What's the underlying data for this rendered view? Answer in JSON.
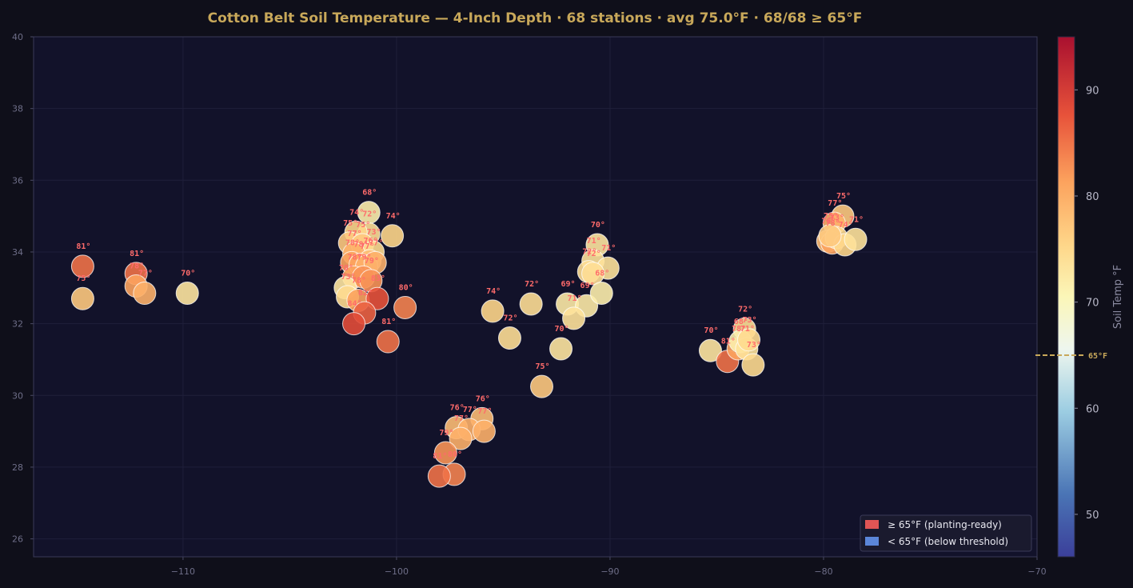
{
  "colors": {
    "background": "#0f0f1a",
    "plot_background": "#12122a",
    "title": "#c8a85a",
    "tick_text": "#6e6e88",
    "cb_tick_text": "#b8b8c8",
    "label_text": "#ff6b6b",
    "threshold": "#c8a85a",
    "legend_bg": "#1a1a2e",
    "legend_text": "#e8e8f0",
    "above_swatch": "#e05555",
    "below_swatch": "#5b86d8"
  },
  "chart_data": {
    "type": "scatter",
    "title": "Cotton Belt Soil Temperature — 4-Inch Depth  ·  68 stations  ·  avg 75.0°F  ·  68/68 ≥ 65°F",
    "xlabel": "",
    "ylabel": "",
    "xlim": [
      -117,
      -70
    ],
    "ylim": [
      25.5,
      40
    ],
    "xticks": [
      -110,
      -100,
      -90,
      -80,
      -70
    ],
    "xtick_labels": [
      "−110",
      "−100",
      "−90",
      "−80",
      "−70"
    ],
    "yticks": [
      26,
      28,
      30,
      32,
      34,
      36,
      38,
      40
    ],
    "grid": true,
    "colorbar": {
      "label": "Soil Temp °F",
      "range": [
        46,
        95
      ],
      "ticks": [
        50,
        60,
        70,
        80,
        90
      ],
      "threshold": 65,
      "threshold_label": "65°F",
      "colormap": "RdYlBu_r"
    },
    "legend": {
      "position": "bottom-right",
      "entries": [
        {
          "label": "≥ 65°F  (planting-ready)",
          "color": "#e05555"
        },
        {
          "label": "< 65°F  (below threshold)",
          "color": "#5b86d8"
        }
      ]
    },
    "points": [
      {
        "lon": -114.7,
        "lat": 33.6,
        "temp": 81
      },
      {
        "lon": -114.7,
        "lat": 32.7,
        "temp": 75
      },
      {
        "lon": -112.2,
        "lat": 33.4,
        "temp": 81
      },
      {
        "lon": -112.2,
        "lat": 33.05,
        "temp": 78
      },
      {
        "lon": -111.8,
        "lat": 32.85,
        "temp": 77
      },
      {
        "lon": -109.8,
        "lat": 32.85,
        "temp": 70
      },
      {
        "lon": -101.3,
        "lat": 35.1,
        "temp": 68
      },
      {
        "lon": -101.3,
        "lat": 34.5,
        "temp": 72
      },
      {
        "lon": -101.9,
        "lat": 34.55,
        "temp": 74
      },
      {
        "lon": -100.2,
        "lat": 34.45,
        "temp": 74
      },
      {
        "lon": -102.2,
        "lat": 34.25,
        "temp": 75
      },
      {
        "lon": -101.6,
        "lat": 34.2,
        "temp": 75
      },
      {
        "lon": -101.1,
        "lat": 34.0,
        "temp": 73
      },
      {
        "lon": -102.0,
        "lat": 33.95,
        "temp": 77
      },
      {
        "lon": -101.25,
        "lat": 33.75,
        "temp": 76
      },
      {
        "lon": -102.1,
        "lat": 33.7,
        "temp": 78
      },
      {
        "lon": -101.7,
        "lat": 33.65,
        "temp": 78
      },
      {
        "lon": -101.4,
        "lat": 33.6,
        "temp": 77
      },
      {
        "lon": -101.0,
        "lat": 33.7,
        "temp": 77
      },
      {
        "lon": -102.0,
        "lat": 33.3,
        "temp": 78
      },
      {
        "lon": -101.55,
        "lat": 33.3,
        "temp": 79
      },
      {
        "lon": -101.2,
        "lat": 33.2,
        "temp": 79
      },
      {
        "lon": -102.4,
        "lat": 33.0,
        "temp": 70
      },
      {
        "lon": -102.3,
        "lat": 32.75,
        "temp": 73
      },
      {
        "lon": -101.8,
        "lat": 32.65,
        "temp": 78
      },
      {
        "lon": -100.9,
        "lat": 32.7,
        "temp": 83
      },
      {
        "lon": -101.5,
        "lat": 32.3,
        "temp": 82
      },
      {
        "lon": -102.0,
        "lat": 32.0,
        "temp": 84
      },
      {
        "lon": -99.6,
        "lat": 32.45,
        "temp": 80
      },
      {
        "lon": -100.4,
        "lat": 31.5,
        "temp": 81
      },
      {
        "lon": -95.5,
        "lat": 32.35,
        "temp": 74
      },
      {
        "lon": -94.7,
        "lat": 31.6,
        "temp": 72
      },
      {
        "lon": -93.7,
        "lat": 32.55,
        "temp": 72
      },
      {
        "lon": -93.2,
        "lat": 30.25,
        "temp": 75
      },
      {
        "lon": -92.3,
        "lat": 31.3,
        "temp": 70
      },
      {
        "lon": -92.0,
        "lat": 32.55,
        "temp": 69
      },
      {
        "lon": -91.1,
        "lat": 32.5,
        "temp": 69
      },
      {
        "lon": -91.7,
        "lat": 32.15,
        "temp": 71
      },
      {
        "lon": -90.6,
        "lat": 34.2,
        "temp": 70
      },
      {
        "lon": -90.8,
        "lat": 33.75,
        "temp": 71
      },
      {
        "lon": -90.1,
        "lat": 33.55,
        "temp": 71
      },
      {
        "lon": -91.0,
        "lat": 33.45,
        "temp": 72
      },
      {
        "lon": -90.8,
        "lat": 33.4,
        "temp": 72
      },
      {
        "lon": -90.4,
        "lat": 32.85,
        "temp": 68
      },
      {
        "lon": -97.2,
        "lat": 29.1,
        "temp": 76
      },
      {
        "lon": -96.0,
        "lat": 29.35,
        "temp": 76
      },
      {
        "lon": -96.6,
        "lat": 29.05,
        "temp": 77
      },
      {
        "lon": -97.0,
        "lat": 28.8,
        "temp": 77
      },
      {
        "lon": -95.9,
        "lat": 29.0,
        "temp": 77
      },
      {
        "lon": -97.7,
        "lat": 28.4,
        "temp": 79
      },
      {
        "lon": -97.3,
        "lat": 27.8,
        "temp": 80
      },
      {
        "lon": -98.0,
        "lat": 27.75,
        "temp": 81
      },
      {
        "lon": -85.3,
        "lat": 31.25,
        "temp": 70
      },
      {
        "lon": -84.5,
        "lat": 30.95,
        "temp": 81
      },
      {
        "lon": -84.0,
        "lat": 31.3,
        "temp": 78
      },
      {
        "lon": -83.7,
        "lat": 31.85,
        "temp": 72
      },
      {
        "lon": -83.9,
        "lat": 31.5,
        "temp": 68
      },
      {
        "lon": -83.6,
        "lat": 31.3,
        "temp": 71
      },
      {
        "lon": -83.5,
        "lat": 31.55,
        "temp": 73
      },
      {
        "lon": -83.3,
        "lat": 30.85,
        "temp": 73
      },
      {
        "lon": -79.1,
        "lat": 35.0,
        "temp": 75
      },
      {
        "lon": -79.5,
        "lat": 34.8,
        "temp": 77
      },
      {
        "lon": -79.8,
        "lat": 34.3,
        "temp": 76
      },
      {
        "lon": -79.6,
        "lat": 34.25,
        "temp": 78
      },
      {
        "lon": -79.4,
        "lat": 34.4,
        "temp": 73
      },
      {
        "lon": -79.0,
        "lat": 34.2,
        "temp": 74
      },
      {
        "lon": -78.5,
        "lat": 34.35,
        "temp": 71
      },
      {
        "lon": -79.7,
        "lat": 34.45,
        "temp": 75
      }
    ]
  }
}
